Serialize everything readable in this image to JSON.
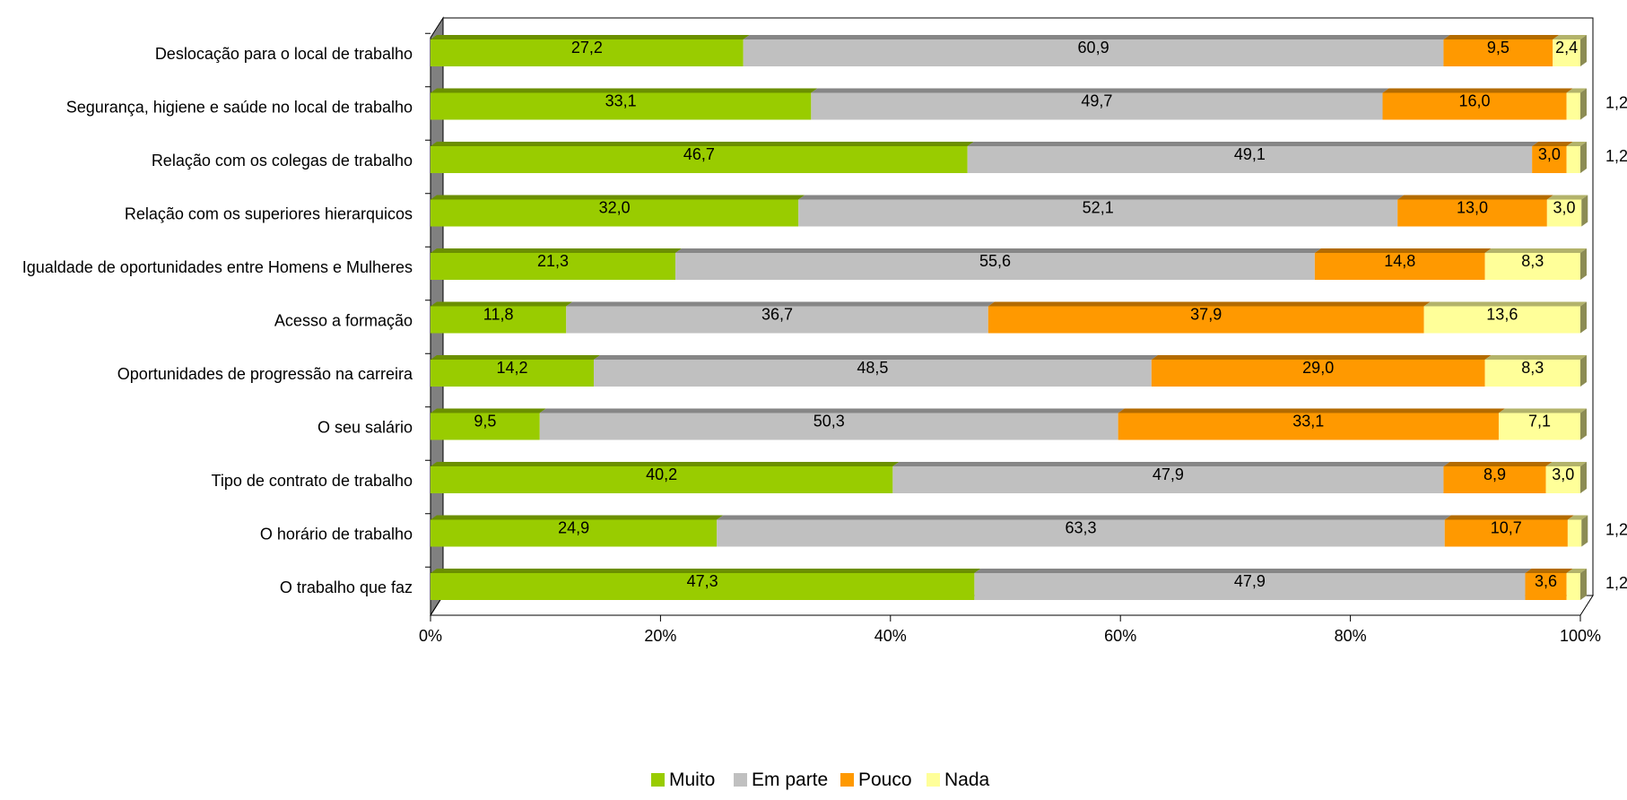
{
  "chart_data": {
    "type": "bar",
    "orientation": "horizontal",
    "stacked": "percent",
    "three_d": true,
    "categories": [
      "Deslocação para o local de trabalho",
      "Segurança, higiene e saúde no local de trabalho",
      "Relação com os colegas de trabalho",
      "Relação com os superiores hierarquicos",
      "Igualdade de oportunidades entre Homens e Mulheres",
      "Acesso a formação",
      "Oportunidades de progressão na carreira",
      "O seu salário",
      "Tipo de contrato de trabalho",
      "O horário de trabalho",
      "O trabalho que faz"
    ],
    "series": [
      {
        "name": "Muito",
        "color": "#99CC00",
        "values": [
          27.2,
          33.1,
          46.7,
          32.0,
          21.3,
          11.8,
          14.2,
          9.5,
          40.2,
          24.9,
          47.3
        ],
        "labels": [
          "27,2",
          "33,1",
          "46,7",
          "32,0",
          "21,3",
          "11,8",
          "14,2",
          "9,5",
          "40,2",
          "24,9",
          "47,3"
        ]
      },
      {
        "name": "Em parte",
        "color": "#C0C0C0",
        "values": [
          60.9,
          49.7,
          49.1,
          52.1,
          55.6,
          36.7,
          48.5,
          50.3,
          47.9,
          63.3,
          47.9
        ],
        "labels": [
          "60,9",
          "49,7",
          "49,1",
          "52,1",
          "55,6",
          "36,7",
          "48,5",
          "50,3",
          "47,9",
          "63,3",
          "47,9"
        ]
      },
      {
        "name": "Pouco",
        "color": "#FF9900",
        "values": [
          9.5,
          16.0,
          3.0,
          13.0,
          14.8,
          37.9,
          29.0,
          33.1,
          8.9,
          10.7,
          3.6
        ],
        "labels": [
          "9,5",
          "16,0",
          "3,0",
          "13,0",
          "14,8",
          "37,9",
          "29,0",
          "33,1",
          "8,9",
          "10,7",
          "3,6"
        ]
      },
      {
        "name": "Nada",
        "color": "#FFFF99",
        "values": [
          2.4,
          1.2,
          1.2,
          3.0,
          8.3,
          13.6,
          8.3,
          7.1,
          3.0,
          1.2,
          1.2
        ],
        "labels": [
          "2,4",
          "1,2",
          "1,2",
          "3,0",
          "8,3",
          "13,6",
          "8,3",
          "7,1",
          "3,0",
          "1,2",
          "1,2"
        ],
        "label_outside": [
          false,
          true,
          true,
          false,
          false,
          false,
          false,
          false,
          false,
          true,
          true
        ]
      }
    ],
    "x_ticks": [
      "0%",
      "20%",
      "40%",
      "60%",
      "80%",
      "100%"
    ],
    "xlim": [
      0,
      100
    ],
    "grid": false,
    "legend": "bottom-center",
    "title": "",
    "xlabel": "",
    "ylabel": ""
  }
}
